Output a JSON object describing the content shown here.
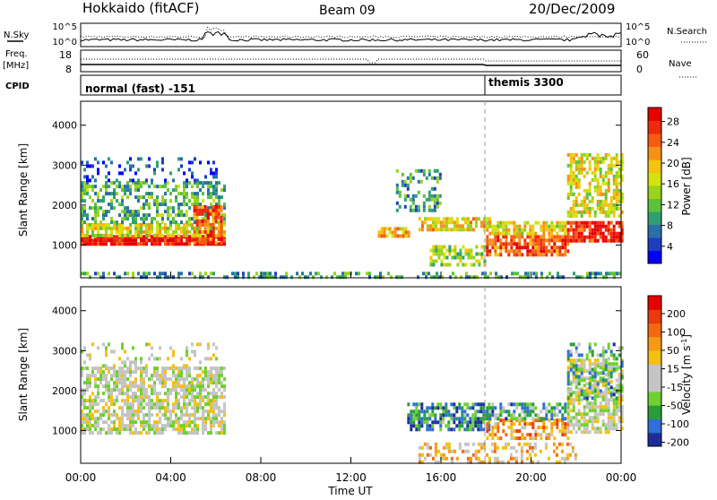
{
  "header": {
    "station": "Hokkaido (fitACF)",
    "beam": "Beam 09",
    "date": "20/Dec/2009"
  },
  "side_labels": {
    "nsky": "N.Sky",
    "nsearch": "N.Search",
    "freq": "Freq.",
    "freq_unit": "[MHz]",
    "nave": "Nave",
    "cpid": "CPID"
  },
  "top_panels": {
    "noise_ticks_left": [
      "10^5",
      "10^0"
    ],
    "noise_ticks_right": [
      "10^5",
      "10^0"
    ],
    "freq_ticks_left": [
      "18",
      "8"
    ],
    "nave_ticks_right": [
      "60",
      "0"
    ],
    "cpid_segments": [
      {
        "label": "normal (fast) -151",
        "start_hour": 0,
        "end_hour": 18
      },
      {
        "label": "themis 3300",
        "start_hour": 18,
        "end_hour": 24
      }
    ]
  },
  "chart_data": [
    {
      "type": "heatmap",
      "name": "power-panel",
      "ylabel": "Slant Range [km]",
      "yticks": [
        1000,
        2000,
        3000,
        4000
      ],
      "ylim": [
        180,
        4600
      ],
      "xlim": [
        0,
        24
      ],
      "colorbar": {
        "label": "Power [dB]",
        "ticks": [
          "4",
          "8",
          "12",
          "16",
          "20",
          "24",
          "28"
        ],
        "colors": [
          "#0000ff",
          "#1f3dbf",
          "#2a70a6",
          "#2f9f72",
          "#5cc23a",
          "#9ad21c",
          "#d3e20a",
          "#f5c20e",
          "#f79016",
          "#f45c12",
          "#ee2a0c",
          "#e60000"
        ]
      },
      "features": [
        {
          "start": 0.0,
          "end": 6.4,
          "r0": 1000,
          "r1": 1250,
          "level": 0.95,
          "density": 0.9
        },
        {
          "start": 0.0,
          "end": 6.4,
          "r0": 1250,
          "r1": 1550,
          "level": 0.55,
          "density": 0.75
        },
        {
          "start": 0.0,
          "end": 6.4,
          "r0": 1600,
          "r1": 2600,
          "level": 0.35,
          "density": 0.55
        },
        {
          "start": 0.0,
          "end": 6.0,
          "r0": 2600,
          "r1": 3200,
          "level": 0.15,
          "density": 0.25
        },
        {
          "start": 5.0,
          "end": 6.2,
          "r0": 1100,
          "r1": 2000,
          "level": 0.8,
          "density": 0.7
        },
        {
          "start": 13.2,
          "end": 14.6,
          "r0": 1200,
          "r1": 1450,
          "level": 0.65,
          "density": 0.7
        },
        {
          "start": 14.0,
          "end": 16.0,
          "r0": 1900,
          "r1": 2900,
          "level": 0.3,
          "density": 0.35
        },
        {
          "start": 15.0,
          "end": 18.2,
          "r0": 1400,
          "r1": 1700,
          "level": 0.6,
          "density": 0.75
        },
        {
          "start": 15.5,
          "end": 18.0,
          "r0": 500,
          "r1": 1000,
          "level": 0.45,
          "density": 0.6
        },
        {
          "start": 18.0,
          "end": 21.6,
          "r0": 800,
          "r1": 1250,
          "level": 0.8,
          "density": 0.8
        },
        {
          "start": 18.0,
          "end": 21.6,
          "r0": 1300,
          "r1": 1600,
          "level": 0.55,
          "density": 0.7
        },
        {
          "start": 21.6,
          "end": 24.0,
          "r0": 1100,
          "r1": 1600,
          "level": 0.92,
          "density": 0.85
        },
        {
          "start": 21.6,
          "end": 24.0,
          "r0": 1700,
          "r1": 3300,
          "level": 0.55,
          "density": 0.6
        },
        {
          "start": 0.0,
          "end": 24.0,
          "r0": 180,
          "r1": 330,
          "level": 0.3,
          "density": 0.5
        }
      ]
    },
    {
      "type": "heatmap",
      "name": "velocity-panel",
      "ylabel": "Slant Range [km]",
      "yticks": [
        1000,
        2000,
        3000,
        4000
      ],
      "ylim": [
        180,
        4600
      ],
      "xlim": [
        0,
        24
      ],
      "xticks": [
        "00:00",
        "04:00",
        "08:00",
        "12:00",
        "16:00",
        "20:00",
        "00:00"
      ],
      "xlabel": "Time UT",
      "colorbar": {
        "label": "Velocity [m s-1]",
        "ticks": [
          "200",
          "100",
          "50",
          "15",
          "-15",
          "-50",
          "-100",
          "-200"
        ],
        "colors": [
          "#1d2e9a",
          "#2f6fd6",
          "#2a9d3a",
          "#6fd031",
          "#c4c4c4",
          "#c4c4c4",
          "#f5c00e",
          "#f59a16",
          "#f06a14",
          "#e83b0e",
          "#e60000"
        ]
      },
      "features": [
        {
          "start": 0.0,
          "end": 6.4,
          "r0": 900,
          "r1": 2600,
          "level": 0.45,
          "density": 0.7
        },
        {
          "start": 0.0,
          "end": 6.0,
          "r0": 2600,
          "r1": 3200,
          "level": 0.45,
          "density": 0.2
        },
        {
          "start": 14.5,
          "end": 18.2,
          "r0": 1000,
          "r1": 1700,
          "level": 0.2,
          "density": 0.65
        },
        {
          "start": 18.0,
          "end": 21.6,
          "r0": 800,
          "r1": 1300,
          "level": 0.7,
          "density": 0.55
        },
        {
          "start": 18.0,
          "end": 21.6,
          "r0": 1300,
          "r1": 1700,
          "level": 0.25,
          "density": 0.6
        },
        {
          "start": 21.6,
          "end": 24.0,
          "r0": 1000,
          "r1": 2800,
          "level": 0.45,
          "density": 0.7
        },
        {
          "start": 21.6,
          "end": 24.0,
          "r0": 1800,
          "r1": 3200,
          "level": 0.25,
          "density": 0.35
        },
        {
          "start": 15.0,
          "end": 22.0,
          "r0": 250,
          "r1": 700,
          "level": 0.6,
          "density": 0.4
        }
      ]
    }
  ]
}
